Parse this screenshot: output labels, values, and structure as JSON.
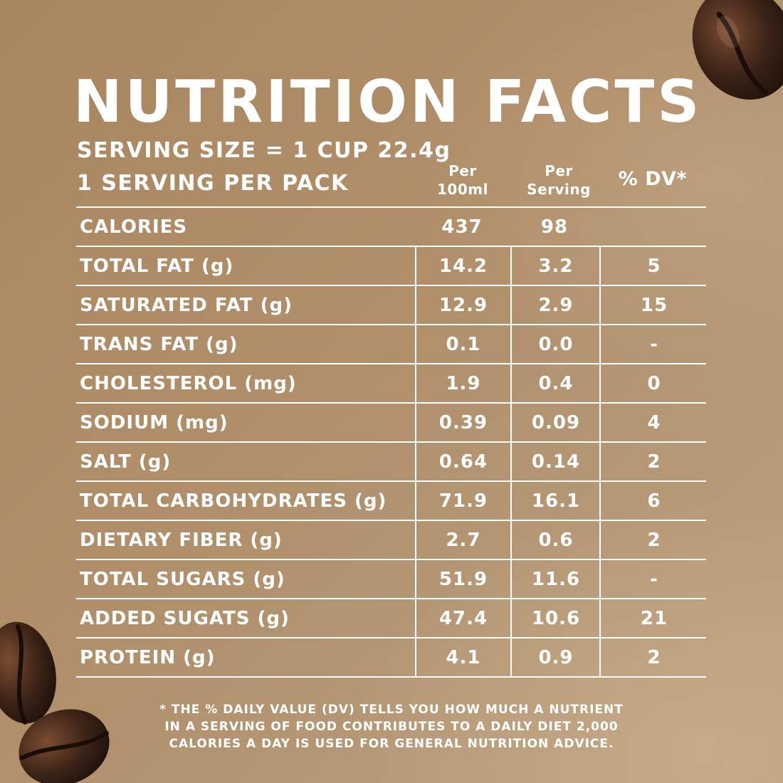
{
  "title": "NUTRITION FACTS",
  "serving_size": "SERVING SIZE = 1 CUP 22.4g",
  "servings_per_pack": "1 SERVING PER PACK",
  "columns": {
    "per_100ml": {
      "line1": "Per",
      "line2": "100ml"
    },
    "per_serving": {
      "line1": "Per",
      "line2": "Serving"
    },
    "dv": "% DV*"
  },
  "rows": [
    {
      "label": "CALORIES",
      "per_100ml": "437",
      "per_serving": "98",
      "dv": ""
    },
    {
      "label": "TOTAL FAT (g)",
      "per_100ml": "14.2",
      "per_serving": "3.2",
      "dv": "5"
    },
    {
      "label": "SATURATED FAT (g)",
      "per_100ml": "12.9",
      "per_serving": "2.9",
      "dv": "15"
    },
    {
      "label": "TRANS FAT (g)",
      "per_100ml": "0.1",
      "per_serving": "0.0",
      "dv": "-"
    },
    {
      "label": "CHOLESTEROL (mg)",
      "per_100ml": "1.9",
      "per_serving": "0.4",
      "dv": "0"
    },
    {
      "label": "SODIUM (mg)",
      "per_100ml": "0.39",
      "per_serving": "0.09",
      "dv": "4"
    },
    {
      "label": "SALT (g)",
      "per_100ml": "0.64",
      "per_serving": "0.14",
      "dv": "2"
    },
    {
      "label": "TOTAL CARBOHYDRATES (g)",
      "per_100ml": "71.9",
      "per_serving": "16.1",
      "dv": "6"
    },
    {
      "label": "DIETARY FIBER (g)",
      "per_100ml": "2.7",
      "per_serving": "0.6",
      "dv": "2"
    },
    {
      "label": "TOTAL SUGARS (g)",
      "per_100ml": "51.9",
      "per_serving": "11.6",
      "dv": "-"
    },
    {
      "label": "ADDED SUGATS (g)",
      "per_100ml": "47.4",
      "per_serving": "10.6",
      "dv": "21"
    },
    {
      "label": "PROTEIN (g)",
      "per_100ml": "4.1",
      "per_serving": "0.9",
      "dv": "2"
    }
  ],
  "footnote": {
    "line1": "* THE % DAILY VALUE (DV) TELLS YOU HOW MUCH A NUTRIENT",
    "line2": "IN A SERVING OF FOOD CONTRIBUTES TO A DAILY DIET 2,000",
    "line3": "CALORIES A DAY IS USED FOR GENERAL NUTRITION ADVICE."
  },
  "colors": {
    "background": "#b0916f",
    "text": "#ffffff",
    "bean": "#3a2216"
  },
  "decorations": [
    "coffee-bean-top-right",
    "coffee-bean-bottom-left"
  ]
}
